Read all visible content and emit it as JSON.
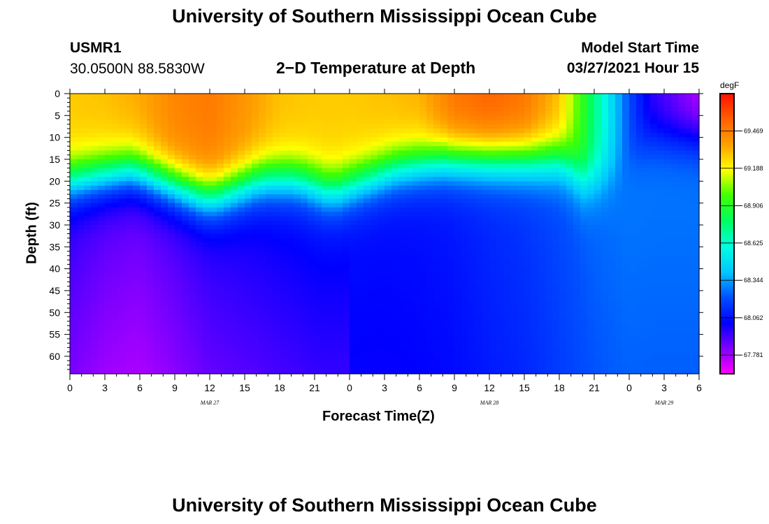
{
  "page": {
    "title_top": "University of Southern Mississippi Ocean Cube",
    "title_bottom": "University of Southern Mississippi Ocean Cube",
    "station_id": "USMR1",
    "station_coords": "30.0500N  88.5830W",
    "model_label": "Model Start Time",
    "model_start": "03/27/2021 Hour 15"
  },
  "chart_data": {
    "type": "heatmap",
    "title": "2−D Temperature at Depth",
    "xlabel": "Forecast Time(Z)",
    "ylabel": "Depth (ft)",
    "x_ticks": [
      "0",
      "3",
      "6",
      "9",
      "12",
      "15",
      "18",
      "21",
      "0",
      "3",
      "6",
      "9",
      "12",
      "15",
      "18",
      "21",
      "0",
      "3",
      "6"
    ],
    "x_range_hours": [
      0,
      54
    ],
    "date_labels": [
      {
        "hour": 12,
        "label": "MAR 27"
      },
      {
        "hour": 36,
        "label": "MAR 28"
      },
      {
        "hour": 51,
        "label": "MAR 29"
      }
    ],
    "y_ticks": [
      0,
      5,
      10,
      15,
      20,
      25,
      30,
      35,
      40,
      45,
      50,
      55,
      60
    ],
    "y_range_ft": [
      0,
      64
    ],
    "colorbar": {
      "unit": "degF",
      "labels": [
        "69.469",
        "69.188",
        "68.906",
        "68.625",
        "68.344",
        "68.062",
        "67.781"
      ],
      "min": 67.64,
      "max": 69.75,
      "stops": [
        "#ff00ff",
        "#8000ff",
        "#0000ff",
        "#0050ff",
        "#00c8ff",
        "#00ffe0",
        "#00ff60",
        "#40ff00",
        "#ffff00",
        "#ffa000",
        "#ff6000",
        "#ff1000"
      ]
    },
    "thermocline_depth_ft": {
      "hours": [
        0,
        1,
        2,
        3,
        4,
        5,
        6,
        7,
        8,
        9,
        10,
        11,
        12,
        13,
        14,
        15,
        16,
        17,
        18,
        19,
        20,
        21,
        22,
        23,
        24,
        25,
        26,
        27,
        28,
        29,
        30,
        31,
        32,
        33,
        34,
        35,
        36,
        37,
        38,
        39,
        40,
        41,
        42,
        43,
        44,
        45,
        46,
        47,
        48,
        49,
        50,
        51,
        52,
        53,
        54
      ],
      "values": [
        20,
        19.5,
        19,
        18.5,
        18,
        17.5,
        18,
        19,
        20,
        21,
        22,
        23,
        23.5,
        23,
        22,
        21,
        20,
        19.5,
        19.5,
        19.5,
        20,
        21,
        22,
        22,
        21,
        20,
        19,
        18,
        17,
        16.5,
        16,
        15.5,
        15,
        15,
        15,
        15,
        15,
        15,
        15,
        15,
        15,
        15,
        15,
        17,
        20,
        20,
        19,
        18,
        14,
        12,
        10,
        10,
        10,
        10,
        10
      ]
    },
    "surface_temp_degF": {
      "hours": [
        0,
        3,
        6,
        9,
        12,
        15,
        18,
        21,
        24,
        27,
        30,
        33,
        36,
        39,
        42,
        45,
        48,
        50,
        52,
        54
      ],
      "values": [
        69.28,
        69.3,
        69.35,
        69.45,
        69.48,
        69.4,
        69.3,
        69.28,
        69.28,
        69.3,
        69.33,
        69.5,
        69.55,
        69.5,
        69.3,
        68.75,
        68.2,
        67.95,
        67.85,
        67.75
      ]
    },
    "deep_temp_degF": {
      "hours": [
        0,
        3,
        6,
        9,
        12,
        15,
        18,
        21,
        24,
        27,
        30,
        33,
        36,
        39,
        42,
        45,
        48,
        51,
        54
      ],
      "values": [
        67.95,
        67.9,
        67.88,
        67.92,
        67.97,
        68.0,
        68.03,
        68.05,
        68.05,
        68.05,
        68.06,
        68.08,
        68.12,
        68.15,
        68.2,
        68.25,
        68.28,
        68.28,
        68.28
      ]
    }
  }
}
